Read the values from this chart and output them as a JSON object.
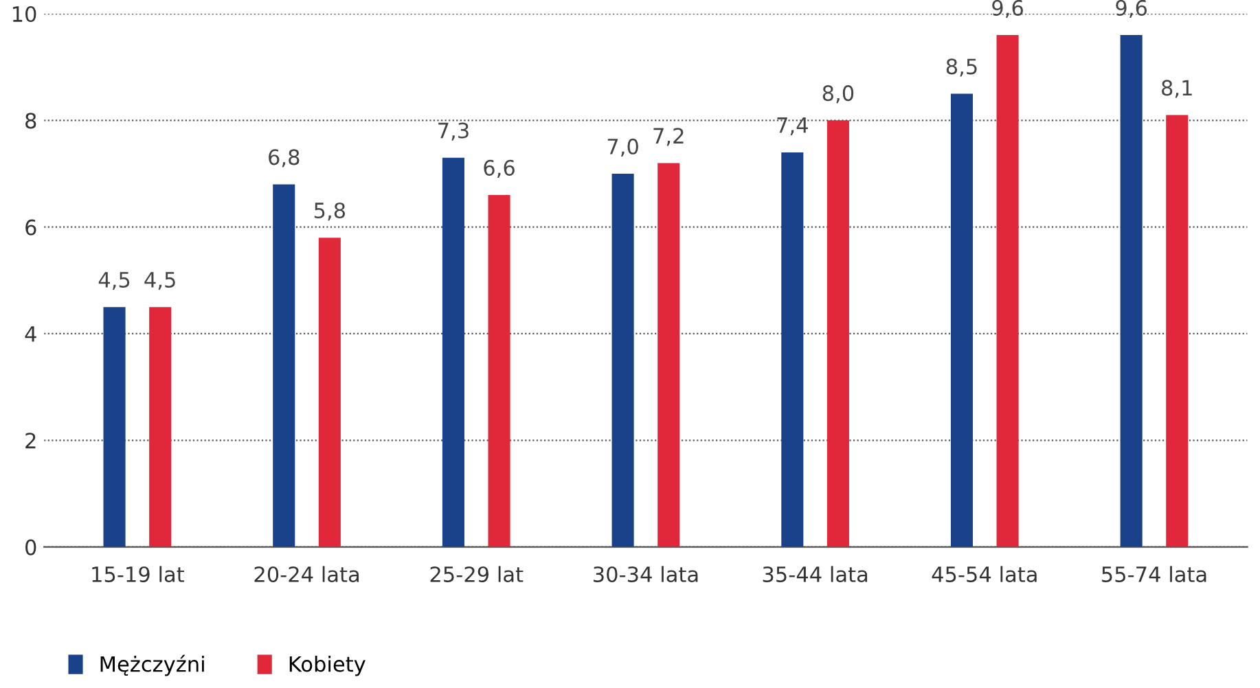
{
  "chart_data": {
    "type": "bar",
    "categories": [
      "15-19 lat",
      "20-24 lata",
      "25-29 lat",
      "30-34 lata",
      "35-44 lata",
      "45-54 lata",
      "55-74 lata"
    ],
    "series": [
      {
        "name": "Mężczyźni",
        "color": "#1a428a",
        "values": [
          4.5,
          6.8,
          7.3,
          7.0,
          7.4,
          8.5,
          9.6
        ],
        "value_labels": [
          "4,5",
          "6,8",
          "7,3",
          "7,0",
          "7,4",
          "8,5",
          "9,6"
        ]
      },
      {
        "name": "Kobiety",
        "color": "#e0283a",
        "values": [
          4.5,
          5.8,
          6.6,
          7.2,
          8.0,
          9.6,
          8.1
        ],
        "value_labels": [
          "4,5",
          "5,8",
          "6,6",
          "7,2",
          "8,0",
          "9,6",
          "8,1"
        ]
      }
    ],
    "ylim": [
      0,
      10
    ],
    "yticks": [
      0,
      2,
      4,
      6,
      8,
      10
    ],
    "grid": "y",
    "legend": "bottom left"
  }
}
